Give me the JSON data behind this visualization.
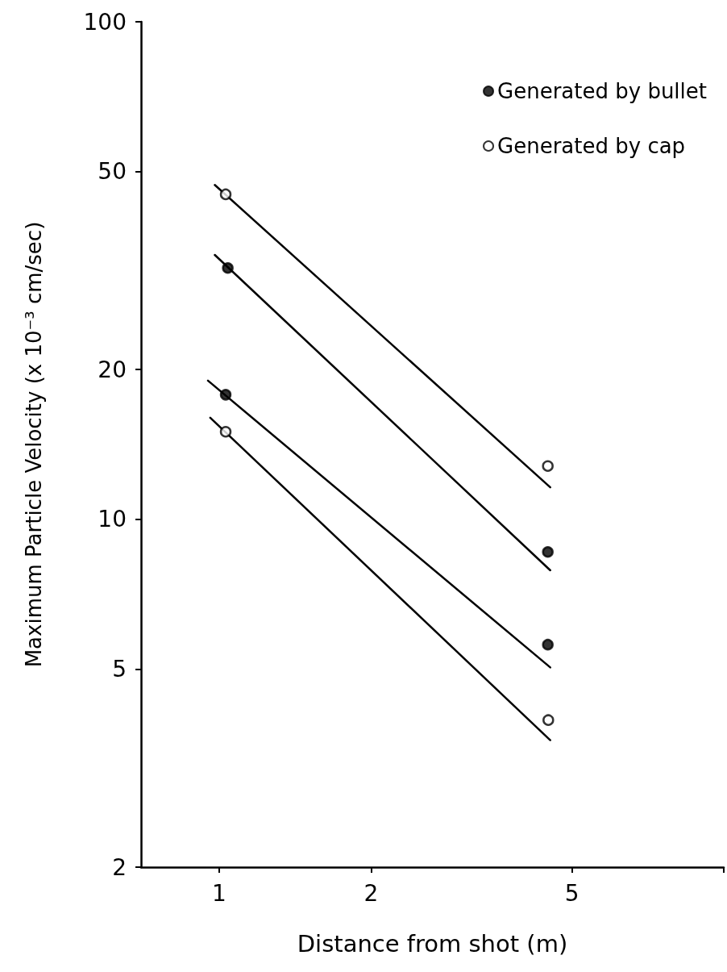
{
  "chart_data": {
    "type": "scatter",
    "xlabel": "Distance from shot (m)",
    "ylabel": "Maximum Particle Velocity (x 10⁻³ cm/sec)",
    "log": "xy",
    "xlim": [
      0.7,
      10
    ],
    "xticks": [
      1,
      2,
      5,
      {
        "value": 10,
        "label": null
      }
    ],
    "ylim": [
      2,
      100
    ],
    "yticks": [
      2,
      5,
      10,
      20,
      50,
      100
    ],
    "grid": false,
    "legend": "top right",
    "marker": "circle",
    "series": [
      {
        "name": "Generated by bullet",
        "type": "scatter",
        "color": "#000000",
        "x": [
          1.04,
          4.48,
          1.03,
          4.48
        ],
        "values": [
          32,
          8.6,
          17.8,
          5.6
        ]
      },
      {
        "name": "Generated by cap",
        "type": "scatter",
        "color": "#ffffff",
        "x": [
          1.03,
          4.48,
          1.03,
          4.49
        ],
        "values": [
          45,
          12.8,
          15.0,
          3.95
        ]
      },
      {
        "type": "line",
        "color": "#000000",
        "marker": "none",
        "x": [
          0.98,
          4.53
        ],
        "values": [
          47,
          11.6
        ]
      },
      {
        "type": "line",
        "color": "#000000",
        "marker": "none",
        "x": [
          0.98,
          4.53
        ],
        "values": [
          34,
          7.9
        ]
      },
      {
        "type": "line",
        "color": "#000000",
        "marker": "none",
        "x": [
          0.95,
          4.53
        ],
        "values": [
          19,
          5.04
        ]
      },
      {
        "type": "line",
        "color": "#000000",
        "marker": "none",
        "x": [
          0.96,
          4.53
        ],
        "values": [
          16,
          3.6
        ]
      }
    ]
  }
}
